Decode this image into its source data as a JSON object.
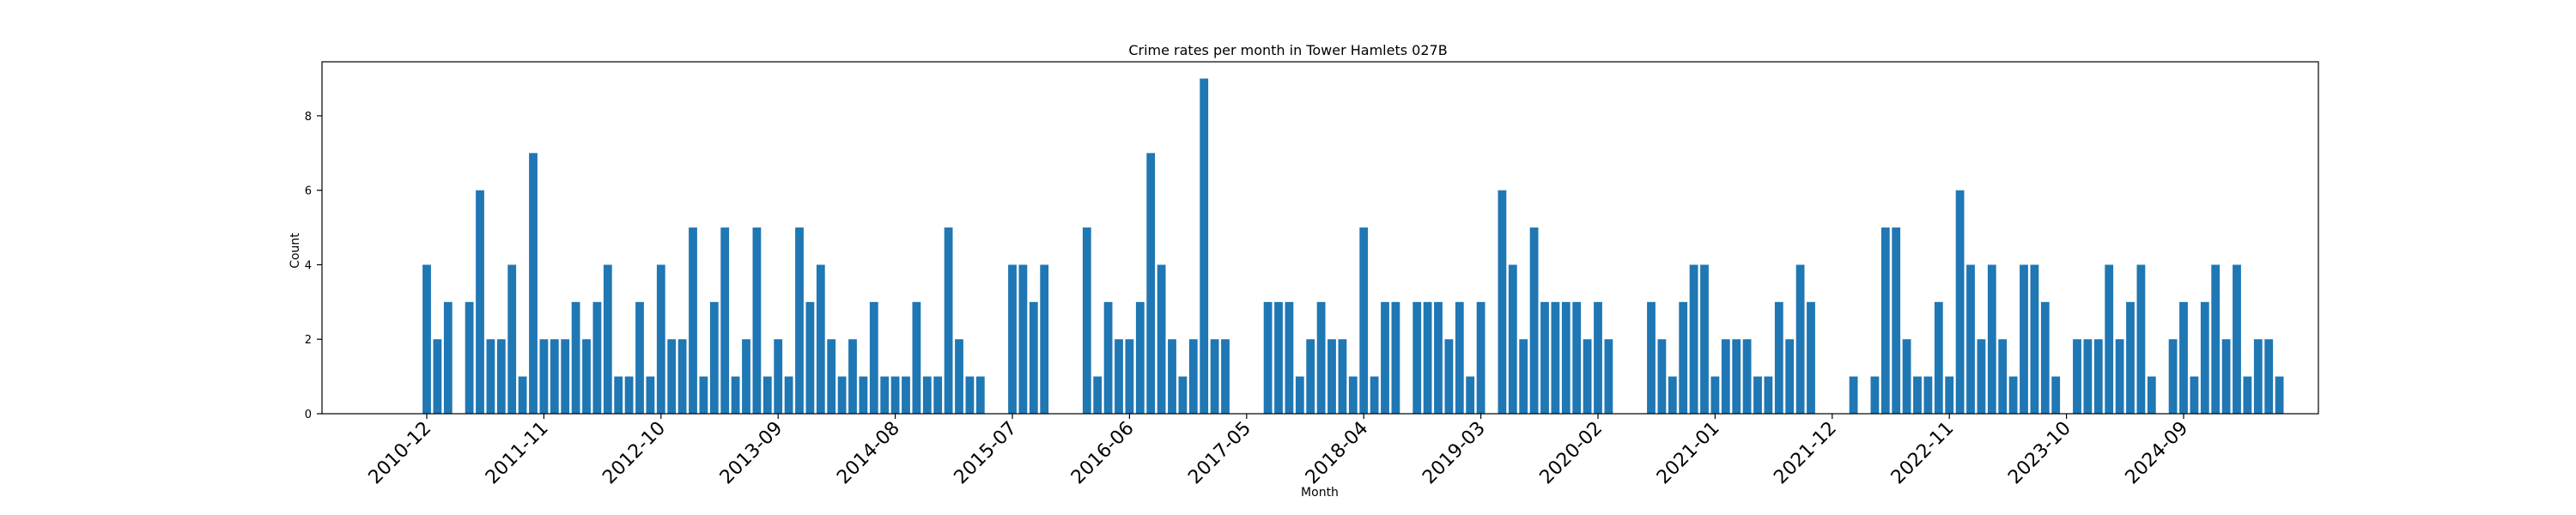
{
  "chart_data": {
    "type": "bar",
    "title": "Crime rates per month in Tower Hamlets 027B",
    "xlabel": "Month",
    "ylabel": "Count",
    "ylim": [
      0,
      9.45
    ],
    "yticks": [
      0,
      2,
      4,
      6,
      8
    ],
    "xticks": [
      "2010-12",
      "2011-11",
      "2012-10",
      "2013-09",
      "2014-08",
      "2015-07",
      "2016-06",
      "2017-05",
      "2018-04",
      "2019-03",
      "2020-02",
      "2021-01",
      "2021-12",
      "2022-11",
      "2023-10",
      "2024-09"
    ],
    "bar_color": "#1f77b4",
    "grid": false,
    "start_month": "2010-12",
    "values": [
      4,
      2,
      3,
      null,
      3,
      6,
      2,
      2,
      4,
      1,
      7,
      2,
      2,
      2,
      3,
      2,
      3,
      4,
      1,
      1,
      3,
      1,
      4,
      2,
      2,
      5,
      1,
      3,
      5,
      1,
      2,
      5,
      1,
      2,
      1,
      5,
      3,
      4,
      2,
      1,
      2,
      1,
      3,
      1,
      1,
      1,
      3,
      1,
      1,
      5,
      2,
      1,
      1,
      null,
      null,
      4,
      4,
      3,
      4,
      null,
      null,
      null,
      5,
      1,
      3,
      2,
      2,
      3,
      7,
      4,
      2,
      1,
      2,
      9,
      2,
      2,
      null,
      null,
      null,
      3,
      3,
      3,
      1,
      2,
      3,
      2,
      2,
      1,
      5,
      1,
      3,
      3,
      null,
      3,
      3,
      3,
      2,
      3,
      1,
      3,
      null,
      6,
      4,
      2,
      5,
      3,
      3,
      3,
      3,
      2,
      3,
      2,
      null,
      null,
      null,
      3,
      2,
      1,
      3,
      4,
      4,
      1,
      2,
      2,
      2,
      1,
      1,
      3,
      2,
      4,
      3,
      null,
      null,
      null,
      1,
      null,
      1,
      5,
      5,
      2,
      1,
      1,
      3,
      1,
      6,
      4,
      2,
      4,
      2,
      1,
      4,
      4,
      3,
      1,
      null,
      2,
      2,
      2,
      4,
      2,
      3,
      4,
      1,
      null,
      2,
      3,
      1,
      3,
      4,
      2,
      4,
      1,
      2,
      2,
      1
    ]
  }
}
